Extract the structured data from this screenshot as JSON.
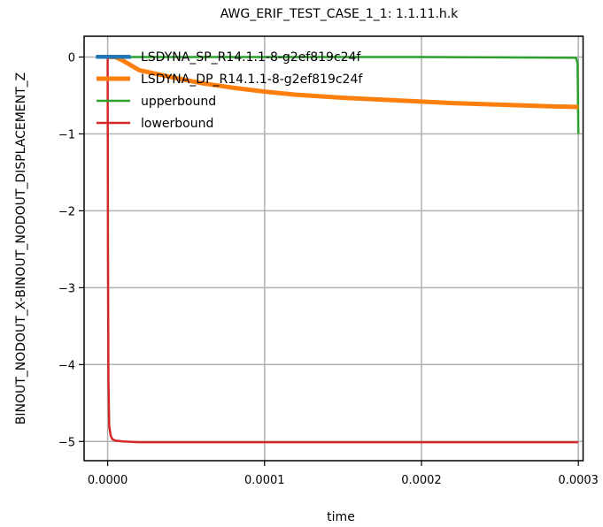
{
  "chart_data": {
    "type": "line",
    "title": "AWG_ERIF_TEST_CASE_1_1: 1.1.11.h.k",
    "xlabel": "time",
    "ylabel": "BINOUT_NODOUT_X-BINOUT_NODOUT_DISPLACEMENT_Z",
    "xlim": [
      -1.5e-05,
      0.000303
    ],
    "ylim": [
      -5.25,
      0.27
    ],
    "grid": true,
    "legend_position": "top-left",
    "x_ticks": [
      0,
      0.0001,
      0.0002,
      0.0003
    ],
    "x_tick_labels": [
      "0.0000",
      "0.0001",
      "0.0002",
      "0.0003"
    ],
    "y_ticks": [
      0,
      -1,
      -2,
      -3,
      -4,
      -5
    ],
    "y_tick_labels": [
      "0",
      "−1",
      "−2",
      "−3",
      "−4",
      "−5"
    ],
    "series": [
      {
        "name": "LSDYNA_SP_R14.1.1-8-g2ef819c24f",
        "color": "#1f77b4",
        "line_width": 4,
        "x": [
          -7.5e-06,
          1.48e-05
        ],
        "y": [
          0.0,
          0.0
        ]
      },
      {
        "name": "LSDYNA_DP_R14.1.1-8-g2ef819c24f",
        "color": "#ff7f0e",
        "line_width": 5,
        "x": [
          0,
          5e-06,
          1e-05,
          2e-05,
          4e-05,
          6e-05,
          8e-05,
          0.0001,
          0.00012,
          0.00015,
          0.00018,
          0.0002,
          0.00022,
          0.00025,
          0.00028,
          0.0003
        ],
        "y": [
          0.0,
          0.0,
          -0.05,
          -0.17,
          -0.26,
          -0.34,
          -0.4,
          -0.45,
          -0.49,
          -0.53,
          -0.56,
          -0.58,
          -0.6,
          -0.62,
          -0.64,
          -0.65
        ]
      },
      {
        "name": "upperbound",
        "color": "#2ca02c",
        "line_width": 2.5,
        "x": [
          0,
          0.0001,
          0.0002,
          0.0002985,
          0.0002995,
          0.0003
        ],
        "y": [
          0.0,
          0.0,
          0.0,
          -0.01,
          -0.08,
          -1.0
        ]
      },
      {
        "name": "lowerbound",
        "color": "#d62728",
        "line_width": 2.5,
        "x": [
          0,
          2e-07,
          5e-07,
          1e-06,
          2e-06,
          3e-06,
          5e-06,
          1e-05,
          2e-05,
          0.0003
        ],
        "y": [
          0.0,
          -2.5,
          -4.2,
          -4.8,
          -4.93,
          -4.97,
          -4.99,
          -5.0,
          -5.01,
          -5.01
        ]
      }
    ]
  }
}
